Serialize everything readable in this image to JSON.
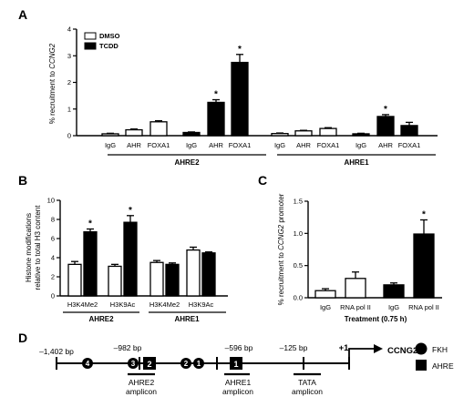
{
  "panels": {
    "a": "A",
    "b": "B",
    "c": "C",
    "d": "D"
  },
  "chart_data": [
    {
      "panel": "A",
      "type": "bar",
      "ylabel_prefix": "% recruitment to ",
      "ylabel_gene": "CCNG2",
      "ylim": [
        0,
        4
      ],
      "yticks": [
        0,
        1,
        2,
        3,
        4
      ],
      "legend": [
        {
          "name": "DMSO",
          "color": "#ffffff"
        },
        {
          "name": "TCDD",
          "color": "#000000"
        }
      ],
      "groups": [
        {
          "name": "AHRE2",
          "bars": [
            {
              "x": "IgG",
              "series": "DMSO",
              "value": 0.07,
              "err": 0.02
            },
            {
              "x": "AHR",
              "series": "DMSO",
              "value": 0.22,
              "err": 0.03
            },
            {
              "x": "FOXA1",
              "series": "DMSO",
              "value": 0.52,
              "err": 0.04
            },
            {
              "x": "IgG",
              "series": "TCDD",
              "value": 0.12,
              "err": 0.02
            },
            {
              "x": "AHR",
              "series": "TCDD",
              "value": 1.25,
              "err": 0.1,
              "sig": "*"
            },
            {
              "x": "FOXA1",
              "series": "TCDD",
              "value": 2.75,
              "err": 0.3,
              "sig": "*"
            }
          ]
        },
        {
          "name": "AHRE1",
          "bars": [
            {
              "x": "IgG",
              "series": "DMSO",
              "value": 0.08,
              "err": 0.02
            },
            {
              "x": "AHR",
              "series": "DMSO",
              "value": 0.18,
              "err": 0.02
            },
            {
              "x": "FOXA1",
              "series": "DMSO",
              "value": 0.27,
              "err": 0.03
            },
            {
              "x": "IgG",
              "series": "TCDD",
              "value": 0.07,
              "err": 0.02
            },
            {
              "x": "AHR",
              "series": "TCDD",
              "value": 0.72,
              "err": 0.07,
              "sig": "*"
            },
            {
              "x": "FOXA1",
              "series": "TCDD",
              "value": 0.38,
              "err": 0.12
            }
          ]
        }
      ]
    },
    {
      "panel": "B",
      "type": "bar",
      "ylabel_lines": [
        "Histone modifications",
        "relative to total H3 content"
      ],
      "ylim": [
        0,
        10
      ],
      "yticks": [
        0,
        2,
        4,
        6,
        8,
        10
      ],
      "groups": [
        {
          "name": "AHRE2",
          "bars": [
            {
              "x": "H3K4Me2",
              "series": "DMSO",
              "value": 3.3,
              "err": 0.3
            },
            {
              "x": "H3K4Me2",
              "series": "TCDD",
              "value": 6.7,
              "err": 0.3,
              "sig": "*"
            },
            {
              "x": "H3K9Ac",
              "series": "DMSO",
              "value": 3.1,
              "err": 0.2
            },
            {
              "x": "H3K9Ac",
              "series": "TCDD",
              "value": 7.7,
              "err": 0.7,
              "sig": "*"
            }
          ]
        },
        {
          "name": "AHRE1",
          "bars": [
            {
              "x": "H3K4Me2",
              "series": "DMSO",
              "value": 3.5,
              "err": 0.2
            },
            {
              "x": "H3K4Me2",
              "series": "TCDD",
              "value": 3.3,
              "err": 0.15
            },
            {
              "x": "H3K9Ac",
              "series": "DMSO",
              "value": 4.8,
              "err": 0.3
            },
            {
              "x": "H3K9Ac",
              "series": "TCDD",
              "value": 4.5,
              "err": 0.1
            }
          ]
        }
      ]
    },
    {
      "panel": "C",
      "type": "bar",
      "ylabel_prefix": "% recruitment to ",
      "ylabel_gene": "CCNG2",
      "ylabel_suffix": " promoter",
      "xlabel": "Treatment (0.75 h)",
      "ylim": [
        0,
        1.5
      ],
      "yticks": [
        "0.0",
        "0.5",
        "1.0",
        "1.5"
      ],
      "bars": [
        {
          "x": "IgG",
          "series": "DMSO",
          "value": 0.11,
          "err": 0.03
        },
        {
          "x": "RNA pol II",
          "series": "DMSO",
          "value": 0.3,
          "err": 0.1
        },
        {
          "x": "IgG",
          "series": "TCDD",
          "value": 0.2,
          "err": 0.03
        },
        {
          "x": "RNA pol II",
          "series": "TCDD",
          "value": 0.99,
          "err": 0.22,
          "sig": "*"
        }
      ]
    }
  ],
  "diagram": {
    "positions": [
      "–1,402 bp",
      "–982 bp",
      "–596 bp",
      "–125 bp",
      "+1"
    ],
    "gene": "CCNG2",
    "sites": [
      "4",
      "3",
      "2",
      "2",
      "1",
      "1"
    ],
    "amplicons": [
      {
        "name": "AHRE2",
        "sub": "amplicon"
      },
      {
        "name": "AHRE1",
        "sub": "amplicon"
      },
      {
        "name": "TATA",
        "sub": "amplicon"
      }
    ],
    "legend": [
      {
        "label": "FKH",
        "shape": "circle"
      },
      {
        "label": "AHRE",
        "shape": "square"
      }
    ]
  }
}
